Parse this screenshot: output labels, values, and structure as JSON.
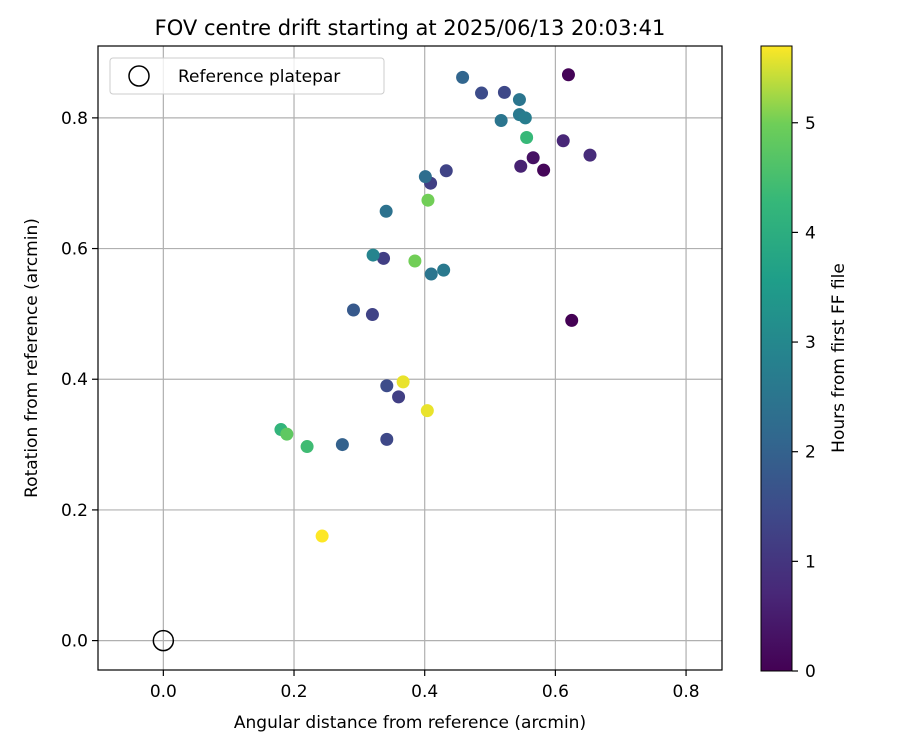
{
  "chart_data": {
    "type": "scatter",
    "title": "FOV centre drift starting at 2025/06/13 20:03:41",
    "xlabel": "Angular distance from reference (arcmin)",
    "ylabel": "Rotation from reference (arcmin)",
    "xlim": [
      -0.1,
      0.855
    ],
    "ylim": [
      -0.045,
      0.91
    ],
    "xticks": [
      "0.0",
      "0.2",
      "0.4",
      "0.6",
      "0.8"
    ],
    "xtick_values": [
      0.0,
      0.2,
      0.4,
      0.6,
      0.8
    ],
    "yticks": [
      "0.0",
      "0.2",
      "0.4",
      "0.6",
      "0.8"
    ],
    "ytick_values": [
      0.0,
      0.2,
      0.4,
      0.6,
      0.8
    ],
    "grid": true,
    "legend": {
      "placement": "top-left",
      "entries": [
        "Reference platepar"
      ]
    },
    "reference_point": {
      "x": 0.0,
      "y": 0.0
    },
    "colorbar": {
      "label": "Hours from first FF file",
      "range": [
        0,
        5.7
      ],
      "ticks": [
        "0",
        "1",
        "2",
        "3",
        "4",
        "5"
      ],
      "tick_values": [
        0,
        1,
        2,
        3,
        4,
        5
      ],
      "colormap": "viridis"
    },
    "points": [
      {
        "x": 0.62,
        "y": 0.866,
        "hours": 0.05
      },
      {
        "x": 0.625,
        "y": 0.49,
        "hours": 0.0
      },
      {
        "x": 0.582,
        "y": 0.72,
        "hours": 0.1
      },
      {
        "x": 0.566,
        "y": 0.739,
        "hours": 0.3
      },
      {
        "x": 0.547,
        "y": 0.726,
        "hours": 0.6
      },
      {
        "x": 0.612,
        "y": 0.765,
        "hours": 0.7
      },
      {
        "x": 0.653,
        "y": 0.743,
        "hours": 0.8
      },
      {
        "x": 0.522,
        "y": 0.839,
        "hours": 1.4
      },
      {
        "x": 0.487,
        "y": 0.838,
        "hours": 1.5
      },
      {
        "x": 0.458,
        "y": 0.862,
        "hours": 2.1
      },
      {
        "x": 0.545,
        "y": 0.828,
        "hours": 2.5
      },
      {
        "x": 0.545,
        "y": 0.805,
        "hours": 2.6
      },
      {
        "x": 0.554,
        "y": 0.8,
        "hours": 2.7
      },
      {
        "x": 0.517,
        "y": 0.796,
        "hours": 2.5
      },
      {
        "x": 0.433,
        "y": 0.719,
        "hours": 1.3
      },
      {
        "x": 0.409,
        "y": 0.7,
        "hours": 1.2
      },
      {
        "x": 0.401,
        "y": 0.71,
        "hours": 2.3
      },
      {
        "x": 0.341,
        "y": 0.657,
        "hours": 2.4
      },
      {
        "x": 0.337,
        "y": 0.585,
        "hours": 1.2
      },
      {
        "x": 0.321,
        "y": 0.59,
        "hours": 2.9
      },
      {
        "x": 0.41,
        "y": 0.561,
        "hours": 2.5
      },
      {
        "x": 0.429,
        "y": 0.567,
        "hours": 2.6
      },
      {
        "x": 0.291,
        "y": 0.506,
        "hours": 1.8
      },
      {
        "x": 0.32,
        "y": 0.499,
        "hours": 1.3
      },
      {
        "x": 0.342,
        "y": 0.39,
        "hours": 1.5
      },
      {
        "x": 0.36,
        "y": 0.373,
        "hours": 1.2
      },
      {
        "x": 0.342,
        "y": 0.308,
        "hours": 1.4
      },
      {
        "x": 0.274,
        "y": 0.3,
        "hours": 2.0
      },
      {
        "x": 0.556,
        "y": 0.77,
        "hours": 4.3
      },
      {
        "x": 0.405,
        "y": 0.674,
        "hours": 5.0
      },
      {
        "x": 0.385,
        "y": 0.581,
        "hours": 5.0
      },
      {
        "x": 0.367,
        "y": 0.396,
        "hours": 5.6
      },
      {
        "x": 0.404,
        "y": 0.352,
        "hours": 5.6
      },
      {
        "x": 0.18,
        "y": 0.323,
        "hours": 4.2
      },
      {
        "x": 0.189,
        "y": 0.316,
        "hours": 4.8
      },
      {
        "x": 0.22,
        "y": 0.297,
        "hours": 4.4
      },
      {
        "x": 0.243,
        "y": 0.16,
        "hours": 5.7
      }
    ]
  }
}
